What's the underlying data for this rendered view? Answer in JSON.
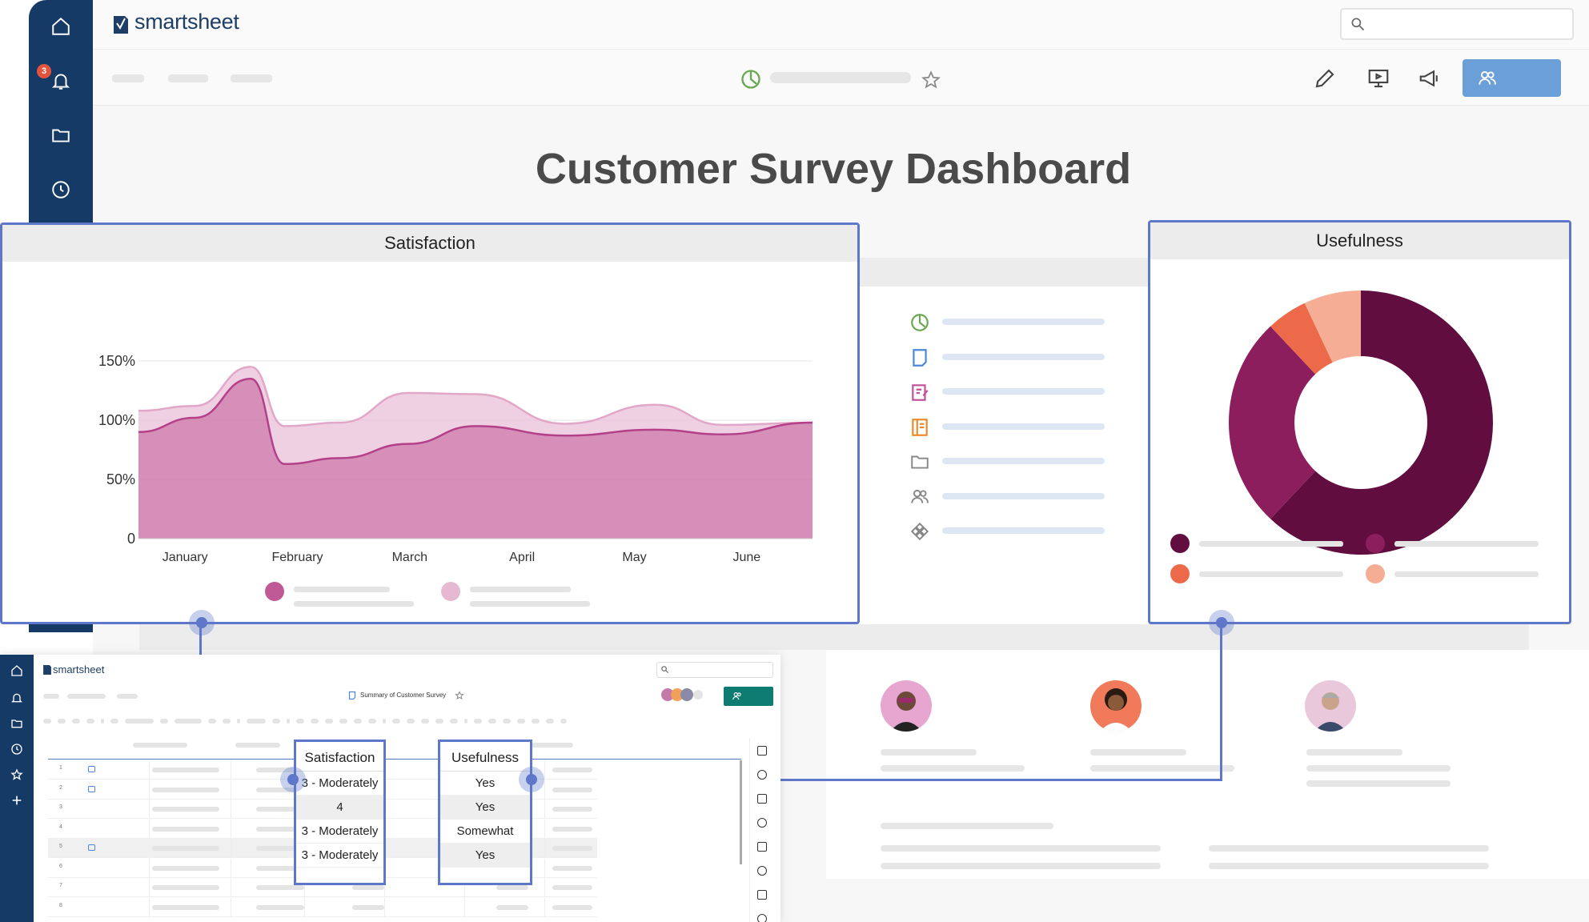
{
  "app": {
    "brand": "smartsheet",
    "notification_count": "3"
  },
  "dashboard": {
    "title": "Customer Survey Dashboard"
  },
  "satisfaction_panel": {
    "title": "Satisfaction"
  },
  "usefulness_panel": {
    "title": "Usefulness"
  },
  "chart_data": [
    {
      "type": "area",
      "title": "Satisfaction",
      "categories": [
        "January",
        "February",
        "March",
        "April",
        "May",
        "June"
      ],
      "yticks": [
        "150%",
        "100%",
        "50%",
        "0"
      ],
      "ylim": [
        0,
        150
      ],
      "grid": true,
      "series": [
        {
          "color": "#e8bcd6",
          "x": [
            0,
            0.5,
            1,
            1.3,
            1.8,
            2.4,
            3,
            3.8,
            4.6,
            5.2,
            6
          ],
          "values": [
            108,
            112,
            145,
            95,
            98,
            123,
            122,
            97,
            113,
            96,
            98
          ]
        },
        {
          "color": "#c05a96",
          "x": [
            0,
            0.5,
            1,
            1.3,
            1.8,
            2.4,
            3,
            3.8,
            4.6,
            5.2,
            6
          ],
          "values": [
            90,
            102,
            135,
            63,
            68,
            80,
            95,
            87,
            92,
            88,
            98
          ]
        }
      ]
    },
    {
      "type": "pie",
      "title": "Usefulness",
      "donut": true,
      "values": [
        62,
        26,
        5,
        7
      ],
      "colors": [
        "#620d40",
        "#8d1e5e",
        "#ec6a4a",
        "#f5ae95"
      ]
    }
  ],
  "sheet": {
    "brand": "smartsheet",
    "title": "Summary of Customer Survey",
    "row_numbers": [
      "1",
      "2",
      "3",
      "4",
      "5",
      "6",
      "7",
      "8"
    ]
  },
  "callouts": {
    "satisfaction": {
      "header": "Satisfaction",
      "cells": [
        "3 - Moderately",
        "4",
        "3 - Moderately",
        "3 - Moderately"
      ]
    },
    "usefulness": {
      "header": "Usefulness",
      "cells": [
        "Yes",
        "Yes",
        "Somewhat",
        "Yes"
      ]
    }
  },
  "colors": {
    "accent": "#5e77c9",
    "nav": "#163a66",
    "share": "#6a9fd8",
    "sheet_share": "#0f7c71"
  },
  "icons": [
    "home-icon",
    "bell-icon",
    "folder-icon",
    "clock-icon",
    "search-icon",
    "star-icon",
    "pencil-icon",
    "present-icon",
    "megaphone-icon",
    "people-icon"
  ]
}
